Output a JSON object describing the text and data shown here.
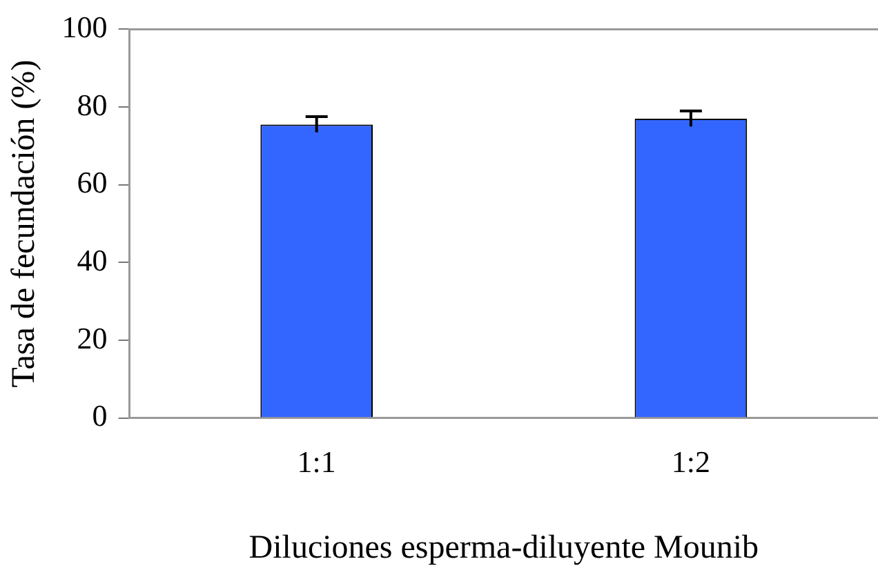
{
  "chart_data": {
    "type": "bar",
    "xlabel": "Diluciones esperma-diluyente Mounib",
    "ylabel": "Tasa de fecundación (%)",
    "categories": [
      "1:1",
      "1:2"
    ],
    "values": [
      75.5,
      77
    ],
    "errors": [
      2,
      2
    ],
    "color": "#3366ff",
    "ylim": [
      0,
      100
    ],
    "yticks": [
      0,
      20,
      40,
      60,
      80,
      100
    ],
    "grid": false,
    "legend": false
  }
}
